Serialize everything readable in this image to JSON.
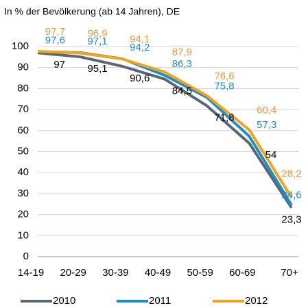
{
  "chart_data": {
    "type": "line",
    "title": "In % der Bevölkerung (ab 14 Jahren), DE",
    "categories": [
      "14-19",
      "20-29",
      "30-39",
      "40-49",
      "50-59",
      "60-69",
      "70+"
    ],
    "series": [
      {
        "name": "2010",
        "color": "#5b6675",
        "label_color": "#000000",
        "values": [
          97,
          95.1,
          90.6,
          84.5,
          71.8,
          54,
          23.3
        ],
        "value_labels": [
          "97",
          "95,1",
          "90,6",
          "84,5",
          "71,8",
          "54",
          "23,3"
        ]
      },
      {
        "name": "2011",
        "color": "#1b8fcc",
        "label_color": "#1b8fcc",
        "values": [
          97.6,
          97.1,
          94.2,
          86.3,
          75.8,
          57.3,
          24.6
        ],
        "value_labels": [
          "97,6",
          "97,1",
          "94,2",
          "86,3",
          "75,8",
          "57,3",
          "24,6"
        ]
      },
      {
        "name": "2012",
        "color": "#f5a21c",
        "label_color": "#f0963c",
        "values": [
          97.7,
          96.9,
          94.1,
          87.9,
          76.6,
          60.4,
          28.2
        ],
        "value_labels": [
          "97,7",
          "96,9",
          "94,1",
          "87,9",
          "76,6",
          "60,4",
          "28,2"
        ]
      }
    ],
    "ylim": [
      0,
      100
    ],
    "yticks": [
      0,
      10,
      20,
      30,
      40,
      50,
      60,
      70,
      80,
      90,
      100
    ],
    "grid": true,
    "legend": "bottom"
  }
}
